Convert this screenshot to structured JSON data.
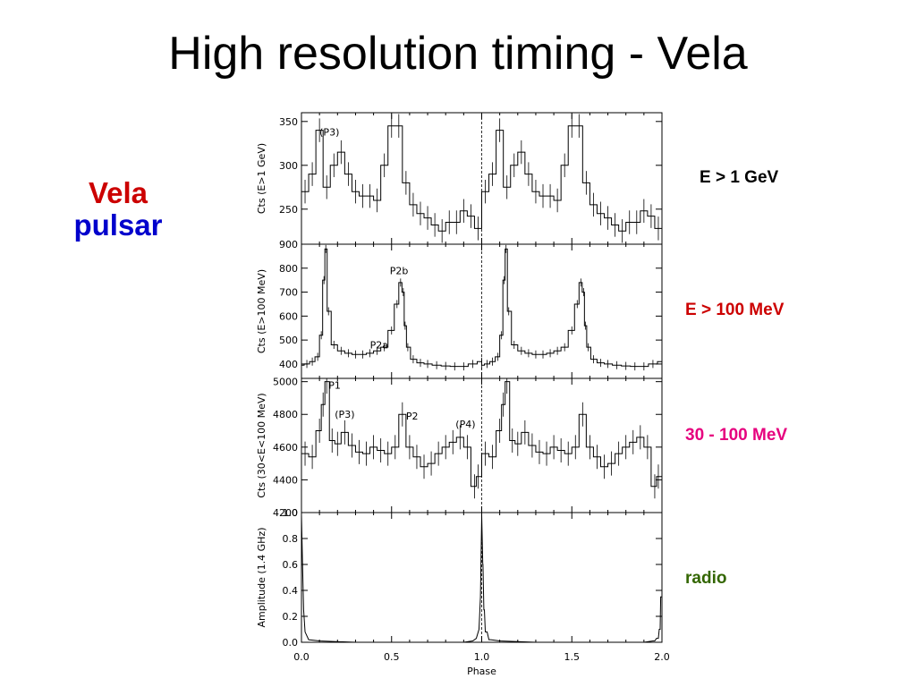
{
  "slide": {
    "title": "High resolution timing - Vela",
    "left_label": {
      "line1": "Vela",
      "line2": "pulsar"
    },
    "colors": {
      "vela": "#cc0000",
      "pulsar": "#0000cc"
    }
  },
  "chart_data": [
    {
      "type": "line",
      "panel": "E > 1 GeV",
      "side_label": "E > 1 GeV",
      "side_label_color": "#000000",
      "ylabel": "Cts (E>1 GeV)",
      "ylim": [
        210,
        360
      ],
      "yticks": [
        250,
        300,
        350
      ],
      "annotations": [
        {
          "text": "(P3)",
          "x": 0.1,
          "y": 338
        }
      ],
      "x": [
        0.02,
        0.06,
        0.1,
        0.14,
        0.18,
        0.22,
        0.26,
        0.3,
        0.34,
        0.38,
        0.42,
        0.46,
        0.5,
        0.54,
        0.58,
        0.62,
        0.66,
        0.7,
        0.74,
        0.78,
        0.82,
        0.86,
        0.9,
        0.94,
        0.98
      ],
      "values": [
        270,
        290,
        340,
        275,
        300,
        315,
        290,
        270,
        265,
        265,
        260,
        300,
        345,
        345,
        280,
        255,
        245,
        240,
        232,
        225,
        235,
        235,
        248,
        242,
        228
      ]
    },
    {
      "type": "line",
      "panel": "E > 100 MeV",
      "side_label": "E > 100 MeV",
      "side_label_color": "#cc0000",
      "ylabel": "Cts (E>100 MeV)",
      "ylim": [
        340,
        900
      ],
      "yticks": [
        400,
        500,
        600,
        700,
        800,
        900
      ],
      "annotations": [
        {
          "text": "P2b",
          "x": 0.49,
          "y": 790
        },
        {
          "text": "P2a",
          "x": 0.38,
          "y": 480
        }
      ],
      "x": [
        0.0,
        0.03,
        0.06,
        0.09,
        0.11,
        0.125,
        0.135,
        0.15,
        0.18,
        0.22,
        0.26,
        0.3,
        0.34,
        0.38,
        0.42,
        0.46,
        0.5,
        0.53,
        0.55,
        0.565,
        0.575,
        0.59,
        0.62,
        0.66,
        0.7,
        0.75,
        0.8,
        0.85,
        0.9,
        0.95,
        1.0
      ],
      "values": [
        395,
        400,
        410,
        430,
        520,
        750,
        880,
        620,
        480,
        455,
        445,
        440,
        440,
        445,
        455,
        470,
        540,
        650,
        740,
        700,
        560,
        470,
        420,
        405,
        400,
        395,
        392,
        390,
        390,
        400,
        410
      ]
    },
    {
      "type": "line",
      "panel": "30 - 100 MeV",
      "side_label": "30 - 100 MeV",
      "side_label_color": "#e6007e",
      "ylabel": "Cts (30<E<100 MeV)",
      "ylim": [
        4200,
        5020
      ],
      "yticks": [
        4200,
        4400,
        4600,
        4800,
        5000
      ],
      "annotations": [
        {
          "text": "P1",
          "x": 0.15,
          "y": 4980
        },
        {
          "text": "(P3)",
          "x": 0.185,
          "y": 4800
        },
        {
          "text": "P2",
          "x": 0.58,
          "y": 4790
        },
        {
          "text": "(P4)",
          "x": 0.855,
          "y": 4740
        }
      ],
      "x": [
        0.02,
        0.06,
        0.1,
        0.12,
        0.14,
        0.17,
        0.2,
        0.24,
        0.28,
        0.32,
        0.36,
        0.4,
        0.44,
        0.48,
        0.52,
        0.56,
        0.6,
        0.64,
        0.68,
        0.72,
        0.76,
        0.8,
        0.84,
        0.88,
        0.92,
        0.96,
        0.98
      ],
      "values": [
        4560,
        4540,
        4700,
        4860,
        5000,
        4640,
        4620,
        4690,
        4610,
        4570,
        4560,
        4600,
        4580,
        4560,
        4600,
        4800,
        4600,
        4540,
        4480,
        4500,
        4560,
        4600,
        4630,
        4660,
        4600,
        4360,
        4420
      ]
    },
    {
      "type": "line",
      "panel": "radio",
      "side_label": "radio",
      "side_label_color": "#336600",
      "ylabel": "Amplitude (1.4 GHz)",
      "xlabel": "Phase",
      "ylim": [
        0.0,
        1.0
      ],
      "yticks": [
        0.0,
        0.2,
        0.4,
        0.6,
        0.8,
        1.0
      ],
      "yticklabels": [
        "0.0",
        "0.2",
        "0.4",
        "0.6",
        "0.8",
        "1.0"
      ],
      "xlim": [
        0.0,
        2.0
      ],
      "xticks": [
        0.0,
        0.5,
        1.0,
        1.5,
        2.0
      ],
      "xticklabels": [
        "0.0",
        "0.5",
        "1.0",
        "1.5",
        "2.0"
      ],
      "x": [
        0.0,
        0.006,
        0.012,
        0.02,
        0.04,
        0.1,
        0.3,
        0.5,
        0.7,
        0.9,
        0.95,
        0.97,
        0.985,
        0.993,
        1.0,
        1.007,
        1.015,
        1.03,
        1.05,
        1.1,
        1.3,
        1.5,
        1.7,
        1.9,
        1.96,
        1.98,
        1.99,
        2.0
      ],
      "values": [
        0.98,
        0.6,
        0.25,
        0.08,
        0.02,
        0.01,
        0.0,
        0.0,
        0.0,
        0.0,
        0.01,
        0.03,
        0.1,
        0.35,
        0.98,
        0.6,
        0.25,
        0.08,
        0.02,
        0.01,
        0.0,
        0.0,
        0.0,
        0.0,
        0.01,
        0.03,
        0.1,
        0.35
      ]
    }
  ],
  "reference_line": {
    "x": 1.0
  }
}
